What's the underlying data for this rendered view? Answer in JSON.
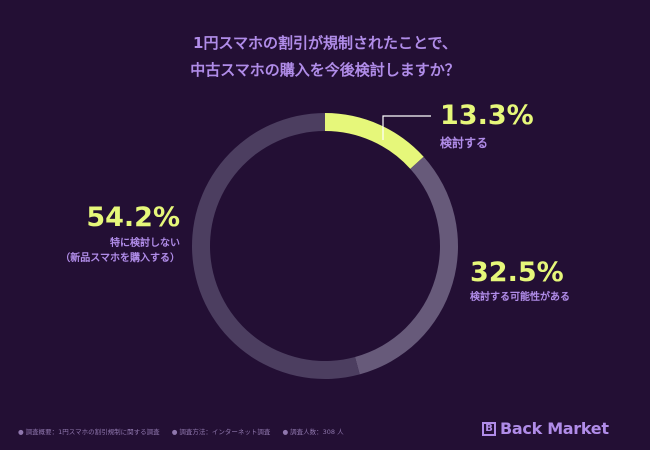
{
  "chart_data": {
    "type": "pie",
    "variant": "donut",
    "title_lines": [
      "1円スマホの割引が規制されたことで、",
      "中古スマホの購入を今後検討しますか？"
    ],
    "slices": [
      {
        "label": "検討する",
        "label_extra": "",
        "value": 13.3,
        "value_text": "13.3%",
        "color": "#e6f77a"
      },
      {
        "label": "検討する可能性がある",
        "label_extra": "",
        "value": 32.5,
        "value_text": "32.5%",
        "color": "#675a7a"
      },
      {
        "label": "特に検討しない",
        "label_extra": "（新品スマホを購入する）",
        "value": 54.2,
        "value_text": "54.2%",
        "color": "#4c3e60"
      }
    ]
  },
  "footer": {
    "items": [
      "調査概要：1円スマホの割引規制に関する調査",
      "調査方法：インターネット調査",
      "調査人数：308 人"
    ]
  },
  "brand": {
    "name": "Back Market",
    "mark": "B",
    "color": "#b08ce8"
  }
}
